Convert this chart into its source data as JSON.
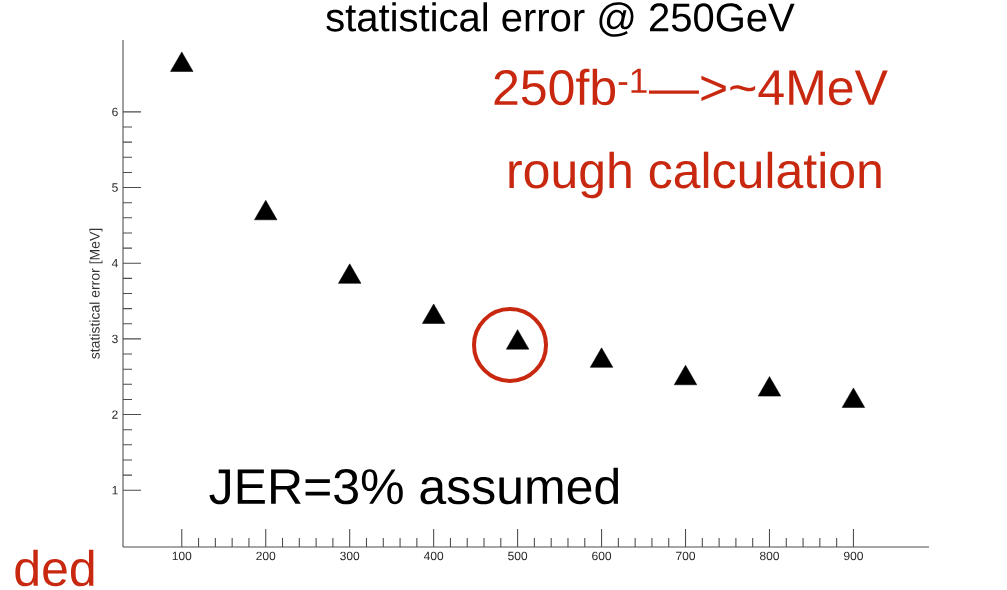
{
  "chart_data": {
    "type": "scatter",
    "title": "statistical error @ 250GeV",
    "ylabel": "statistical error [MeV]",
    "x": [
      100,
      200,
      300,
      400,
      500,
      600,
      700,
      800,
      900
    ],
    "series": [
      {
        "color": "#000000",
        "values": [
          6.62,
          4.66,
          3.82,
          3.29,
          2.95,
          2.71,
          2.48,
          2.33,
          2.18
        ]
      }
    ],
    "xlim": [
      30,
      990
    ],
    "xticks": [
      100,
      200,
      300,
      400,
      500,
      600,
      700,
      800,
      900
    ],
    "ylim": [
      0.25,
      6.95
    ],
    "yticks": [
      1,
      2,
      3,
      4,
      5,
      6
    ],
    "marker": "triangle",
    "grid": false,
    "annotations": [
      "250fb$^{-1}$—>~4MeV",
      "rough calculation",
      "JER=3% assumed",
      "ded"
    ]
  }
}
